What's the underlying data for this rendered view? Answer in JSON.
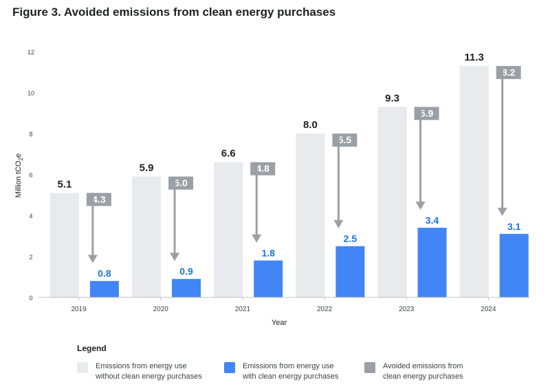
{
  "figure_title": "Figure 3. Avoided emissions from clean energy purchases",
  "chart_data": {
    "type": "bar",
    "categories": [
      "2019",
      "2020",
      "2021",
      "2022",
      "2023",
      "2024"
    ],
    "series": [
      {
        "name": "Emissions from energy use without clean energy purchases",
        "values": [
          5.1,
          5.9,
          6.6,
          8.0,
          9.3,
          11.3
        ],
        "color": "#E8EAED",
        "label_color": "#202124"
      },
      {
        "name": "Emissions from energy use with clean energy purchases",
        "values": [
          0.8,
          0.9,
          1.8,
          2.5,
          3.4,
          3.1
        ],
        "color": "#4285F4",
        "label_color": "#1A73E8"
      }
    ],
    "avoided": {
      "name": "Avoided emissions from clean energy purchases",
      "values": [
        4.3,
        5.0,
        4.8,
        5.5,
        5.9,
        8.2
      ],
      "color": "#9AA0A6"
    },
    "value_labels": {
      "without": [
        "5.1",
        "5.9",
        "6.6",
        "8.0",
        "9.3",
        "11.3"
      ],
      "with": [
        "0.8",
        "0.9",
        "1.8",
        "2.5",
        "3.4",
        "3.1"
      ],
      "avoided": [
        "4.3",
        "5.0",
        "4.8",
        "5.5",
        "5.9",
        "8.2"
      ]
    },
    "ylabel": "Million tCO",
    "ylabel_sub": "2",
    "ylabel_suffix": "e",
    "xlabel": "Year",
    "ylim": [
      0,
      12
    ],
    "yticks": [
      0,
      2,
      4,
      6,
      8,
      10,
      12
    ],
    "ytick_labels": [
      "0",
      "2",
      "4",
      "6",
      "8",
      "10",
      "12"
    ],
    "grid": false
  },
  "legend": {
    "title": "Legend",
    "items": [
      {
        "line1": "Emissions from energy use",
        "line2": "without clean energy purchases",
        "color": "#E8EAED"
      },
      {
        "line1": "Emissions from energy use",
        "line2": "with clean energy purchases",
        "color": "#4285F4"
      },
      {
        "line1": "Avoided emissions from",
        "line2": "clean energy purchases",
        "color": "#9AA0A6"
      }
    ]
  }
}
